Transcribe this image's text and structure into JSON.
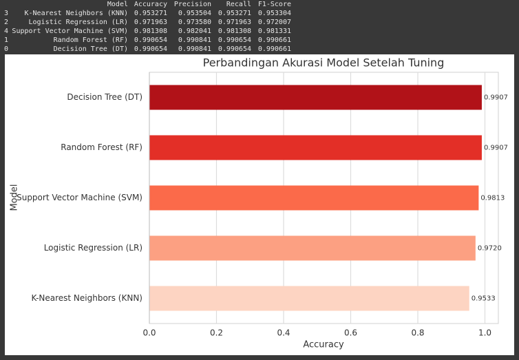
{
  "table": {
    "columns": [
      "Model",
      "Accuracy",
      "Precision",
      "Recall",
      "F1-Score"
    ],
    "rows": [
      [
        "3",
        "K-Nearest Neighbors (KNN)",
        "0.953271",
        "0.953504",
        "0.953271",
        "0.953304"
      ],
      [
        "2",
        "Logistic Regression (LR)",
        "0.971963",
        "0.973580",
        "0.971963",
        "0.972007"
      ],
      [
        "4",
        "Support Vector Machine (SVM)",
        "0.981308",
        "0.982041",
        "0.981308",
        "0.981331"
      ],
      [
        "1",
        "Random Forest (RF)",
        "0.990654",
        "0.990841",
        "0.990654",
        "0.990661"
      ],
      [
        "0",
        "Decision Tree (DT)",
        "0.990654",
        "0.990841",
        "0.990654",
        "0.990661"
      ]
    ]
  },
  "chart_data": {
    "type": "barh",
    "title": "Perbandingan Akurasi Model Setelah Tuning",
    "xlabel": "Accuracy",
    "ylabel": "Model",
    "categories": [
      "K-Nearest Neighbors (KNN)",
      "Logistic Regression (LR)",
      "Support Vector Machine (SVM)",
      "Random Forest (RF)",
      "Decision Tree (DT)"
    ],
    "values": [
      0.953271,
      0.971963,
      0.981308,
      0.990654,
      0.990654
    ],
    "value_labels": [
      "0.9533",
      "0.9720",
      "0.9813",
      "0.9907",
      "0.9907"
    ],
    "colors": [
      "#fdd4c2",
      "#fca082",
      "#fb6a4a",
      "#e32f27",
      "#b11218"
    ],
    "xlim": [
      0,
      1.04
    ],
    "xticks": [
      {
        "value": 0,
        "label": "0.0"
      },
      {
        "value": 0.2,
        "label": "0.2"
      },
      {
        "value": 0.4,
        "label": "0.4"
      },
      {
        "value": 0.6,
        "label": "0.6"
      },
      {
        "value": 0.8,
        "label": "0.8"
      },
      {
        "value": 1,
        "label": "1.0"
      }
    ],
    "grid": true
  }
}
